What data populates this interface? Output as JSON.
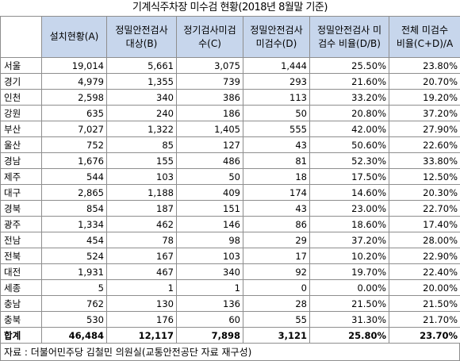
{
  "title": "기계식주차장 미수검 현황(2018년 8월말 기준)",
  "columns": [
    "",
    "설치현황(A)",
    "정밀안전검사\n대상(B)",
    "정기검사미검\n수(C)",
    "정밀안전검사\n미검수(D)",
    "정밀안전검사 미\n검수 비율(D/B)",
    "전체 미검수\n비율(C+D)/A"
  ],
  "rows": [
    [
      "서울",
      "19,014",
      "5,661",
      "3,075",
      "1,444",
      "25.50%",
      "23.80%"
    ],
    [
      "경기",
      "4,979",
      "1,355",
      "739",
      "293",
      "21.60%",
      "20.70%"
    ],
    [
      "인천",
      "2,598",
      "340",
      "386",
      "113",
      "33.20%",
      "19.20%"
    ],
    [
      "강원",
      "635",
      "240",
      "186",
      "50",
      "20.80%",
      "37.20%"
    ],
    [
      "부산",
      "7,027",
      "1,322",
      "1,405",
      "555",
      "42.00%",
      "27.90%"
    ],
    [
      "울산",
      "752",
      "85",
      "127",
      "43",
      "50.60%",
      "22.60%"
    ],
    [
      "경남",
      "1,676",
      "155",
      "486",
      "81",
      "52.30%",
      "33.80%"
    ],
    [
      "제주",
      "544",
      "103",
      "50",
      "18",
      "17.50%",
      "12.50%"
    ],
    [
      "대구",
      "2,865",
      "1,188",
      "409",
      "174",
      "14.60%",
      "20.30%"
    ],
    [
      "경북",
      "854",
      "187",
      "151",
      "43",
      "23.00%",
      "22.70%"
    ],
    [
      "광주",
      "1,334",
      "462",
      "146",
      "86",
      "18.60%",
      "17.40%"
    ],
    [
      "전남",
      "454",
      "78",
      "98",
      "29",
      "37.20%",
      "28.00%"
    ],
    [
      "전북",
      "524",
      "167",
      "103",
      "17",
      "10.20%",
      "22.90%"
    ],
    [
      "대전",
      "1,931",
      "467",
      "340",
      "92",
      "19.70%",
      "22.40%"
    ],
    [
      "세종",
      "5",
      "1",
      "1",
      "0",
      "0.00%",
      "20.00%"
    ],
    [
      "충남",
      "762",
      "130",
      "136",
      "28",
      "21.50%",
      "21.50%"
    ],
    [
      "충북",
      "530",
      "176",
      "60",
      "55",
      "31.30%",
      "21.70%"
    ]
  ],
  "total": [
    "합계",
    "46,484",
    "12,117",
    "7,898",
    "3,121",
    "25.80%",
    "23.70%"
  ],
  "source": "자료 : 더불어민주당 김철민 의원실(교통안전공단 자료 재구성)",
  "colors": {
    "header_bg": "#c7d6ec",
    "border": "#8e8e8e"
  }
}
